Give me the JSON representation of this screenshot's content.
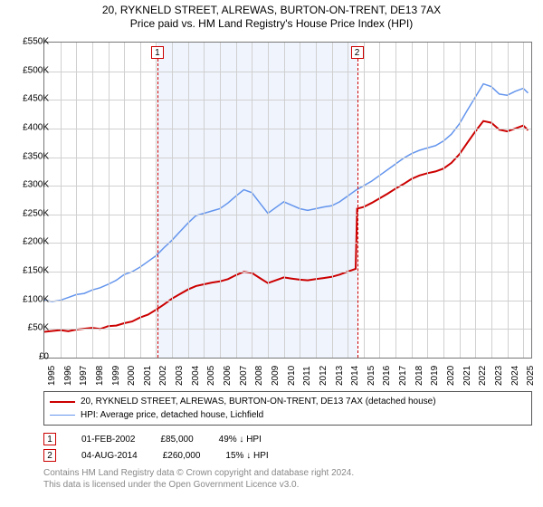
{
  "title": {
    "line1": "20, RYKNELD STREET, ALREWAS, BURTON-ON-TRENT, DE13 7AX",
    "line2": "Price paid vs. HM Land Registry's House Price Index (HPI)"
  },
  "chart": {
    "type": "line",
    "xlim": [
      1995,
      2025.5
    ],
    "ylim": [
      0,
      550000
    ],
    "ytick_step": 50000,
    "xtick_step": 1,
    "grid_color": "#d0d0d0",
    "background_color": "#ffffff",
    "shade_color": "rgba(100,149,237,0.10)",
    "shade_x": [
      2002.08,
      2014.59
    ],
    "yticks": [
      "£0",
      "£50K",
      "£100K",
      "£150K",
      "£200K",
      "£250K",
      "£300K",
      "£350K",
      "£400K",
      "£450K",
      "£500K",
      "£550K"
    ],
    "xticks": [
      "1995",
      "1996",
      "1997",
      "1998",
      "1999",
      "2000",
      "2001",
      "2002",
      "2003",
      "2004",
      "2005",
      "2006",
      "2007",
      "2008",
      "2009",
      "2010",
      "2011",
      "2012",
      "2013",
      "2014",
      "2015",
      "2016",
      "2017",
      "2018",
      "2019",
      "2020",
      "2021",
      "2022",
      "2023",
      "2024",
      "2025"
    ]
  },
  "series": {
    "subject": {
      "color": "#cc0000",
      "width": 2,
      "points": [
        [
          1995,
          45000
        ],
        [
          1996,
          48000
        ],
        [
          1996.5,
          46000
        ],
        [
          1997,
          49000
        ],
        [
          1998,
          52000
        ],
        [
          1998.5,
          50000
        ],
        [
          1999,
          55000
        ],
        [
          1999.5,
          56000
        ],
        [
          2000,
          60000
        ],
        [
          2000.5,
          63000
        ],
        [
          2001,
          70000
        ],
        [
          2001.5,
          75000
        ],
        [
          2002.08,
          85000
        ],
        [
          2002.5,
          93000
        ],
        [
          2003,
          103000
        ],
        [
          2003.5,
          111000
        ],
        [
          2004,
          119000
        ],
        [
          2004.5,
          125000
        ],
        [
          2005,
          128000
        ],
        [
          2005.5,
          131000
        ],
        [
          2006,
          133000
        ],
        [
          2006.5,
          137000
        ],
        [
          2007,
          144000
        ],
        [
          2007.5,
          150000
        ],
        [
          2008,
          148000
        ],
        [
          2008.5,
          139000
        ],
        [
          2009,
          130000
        ],
        [
          2009.5,
          135000
        ],
        [
          2010,
          140000
        ],
        [
          2010.5,
          138000
        ],
        [
          2011,
          136000
        ],
        [
          2011.5,
          135000
        ],
        [
          2012,
          137000
        ],
        [
          2012.5,
          139000
        ],
        [
          2013,
          141000
        ],
        [
          2013.5,
          145000
        ],
        [
          2014,
          150000
        ],
        [
          2014.5,
          155000
        ],
        [
          2014.59,
          260000
        ],
        [
          2015,
          263000
        ],
        [
          2015.5,
          270000
        ],
        [
          2016,
          278000
        ],
        [
          2016.5,
          286000
        ],
        [
          2017,
          295000
        ],
        [
          2017.5,
          303000
        ],
        [
          2018,
          312000
        ],
        [
          2018.5,
          318000
        ],
        [
          2019,
          322000
        ],
        [
          2019.5,
          325000
        ],
        [
          2020,
          330000
        ],
        [
          2020.5,
          340000
        ],
        [
          2021,
          355000
        ],
        [
          2021.5,
          375000
        ],
        [
          2022,
          395000
        ],
        [
          2022.5,
          413000
        ],
        [
          2023,
          410000
        ],
        [
          2023.5,
          398000
        ],
        [
          2024,
          395000
        ],
        [
          2024.5,
          400000
        ],
        [
          2025,
          405000
        ],
        [
          2025.3,
          397000
        ]
      ]
    },
    "hpi": {
      "color": "#6495ed",
      "width": 1.5,
      "points": [
        [
          1995,
          100000
        ],
        [
          1995.5,
          98000
        ],
        [
          1996,
          100000
        ],
        [
          1996.5,
          105000
        ],
        [
          1997,
          110000
        ],
        [
          1997.5,
          112000
        ],
        [
          1998,
          118000
        ],
        [
          1998.5,
          122000
        ],
        [
          1999,
          128000
        ],
        [
          1999.5,
          135000
        ],
        [
          2000,
          145000
        ],
        [
          2000.5,
          150000
        ],
        [
          2001,
          158000
        ],
        [
          2001.5,
          168000
        ],
        [
          2002,
          178000
        ],
        [
          2002.5,
          192000
        ],
        [
          2003,
          205000
        ],
        [
          2003.5,
          220000
        ],
        [
          2004,
          235000
        ],
        [
          2004.5,
          248000
        ],
        [
          2005,
          252000
        ],
        [
          2005.5,
          256000
        ],
        [
          2006,
          260000
        ],
        [
          2006.5,
          270000
        ],
        [
          2007,
          282000
        ],
        [
          2007.5,
          293000
        ],
        [
          2008,
          288000
        ],
        [
          2008.5,
          270000
        ],
        [
          2009,
          252000
        ],
        [
          2009.5,
          262000
        ],
        [
          2010,
          272000
        ],
        [
          2010.5,
          266000
        ],
        [
          2011,
          260000
        ],
        [
          2011.5,
          257000
        ],
        [
          2012,
          260000
        ],
        [
          2012.5,
          263000
        ],
        [
          2013,
          265000
        ],
        [
          2013.5,
          272000
        ],
        [
          2014,
          282000
        ],
        [
          2014.5,
          292000
        ],
        [
          2015,
          300000
        ],
        [
          2015.5,
          308000
        ],
        [
          2016,
          318000
        ],
        [
          2016.5,
          328000
        ],
        [
          2017,
          338000
        ],
        [
          2017.5,
          348000
        ],
        [
          2018,
          356000
        ],
        [
          2018.5,
          362000
        ],
        [
          2019,
          366000
        ],
        [
          2019.5,
          370000
        ],
        [
          2020,
          378000
        ],
        [
          2020.5,
          390000
        ],
        [
          2021,
          408000
        ],
        [
          2021.5,
          432000
        ],
        [
          2022,
          455000
        ],
        [
          2022.5,
          478000
        ],
        [
          2023,
          473000
        ],
        [
          2023.5,
          460000
        ],
        [
          2024,
          458000
        ],
        [
          2024.5,
          465000
        ],
        [
          2025,
          470000
        ],
        [
          2025.3,
          462000
        ]
      ]
    }
  },
  "transactions": [
    {
      "num": "1",
      "x": 2002.08,
      "date": "01-FEB-2002",
      "price": "£85,000",
      "delta": "49% ↓ HPI"
    },
    {
      "num": "2",
      "x": 2014.59,
      "date": "04-AUG-2014",
      "price": "£260,000",
      "delta": "15% ↓ HPI"
    }
  ],
  "legend": {
    "s1": "20, RYKNELD STREET, ALREWAS, BURTON-ON-TRENT, DE13 7AX (detached house)",
    "s2": "HPI: Average price, detached house, Lichfield"
  },
  "attribution": {
    "l1": "Contains HM Land Registry data © Crown copyright and database right 2024.",
    "l2": "This data is licensed under the Open Government Licence v3.0."
  },
  "styling": {
    "title_fontsize": 12,
    "axis_fontsize": 10,
    "legend_fontsize": 10,
    "marker_border": "#cc0000",
    "axis_color": "#777777",
    "attrib_color": "#888888"
  }
}
